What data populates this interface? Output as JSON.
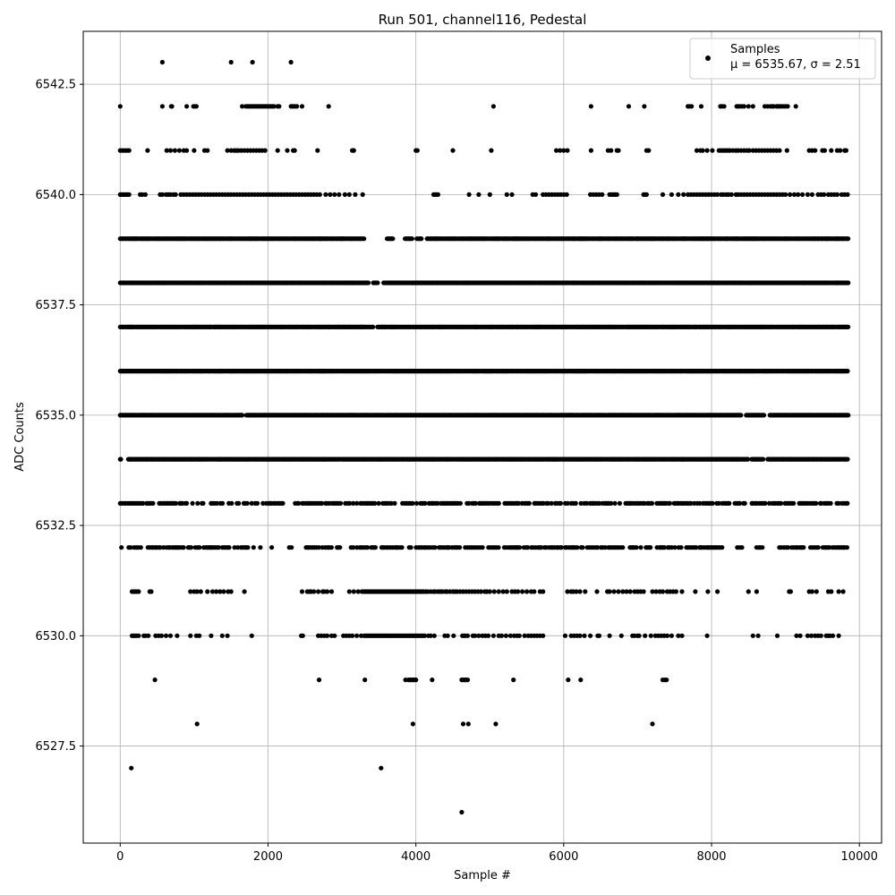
{
  "chart_data": {
    "type": "scatter",
    "title": "Run 501, channel116, Pedestal",
    "xlabel": "Sample #",
    "ylabel": "ADC Counts",
    "xlim": [
      -500,
      10300
    ],
    "ylim": [
      6525.3,
      6543.7
    ],
    "x_ticks": [
      0,
      2000,
      4000,
      6000,
      8000,
      10000
    ],
    "x_tick_labels": [
      "0",
      "2000",
      "4000",
      "6000",
      "8000",
      "10000"
    ],
    "y_ticks": [
      6527.5,
      6530.0,
      6532.5,
      6535.0,
      6537.5,
      6540.0,
      6542.5
    ],
    "y_tick_labels": [
      "6527.5",
      "6530.0",
      "6532.5",
      "6535.0",
      "6537.5",
      "6540.0",
      "6542.5"
    ],
    "grid": true,
    "legend_position": "top-right",
    "marker_color": "#000000",
    "series": [
      {
        "name": "Samples",
        "legend_stats": "μ = 6535.67, σ = 2.51",
        "n_samples": 9850,
        "levels": [
          {
            "adc": 6543,
            "x": [
              570,
              1500,
              1790,
              2310
            ]
          },
          {
            "adc": 6542,
            "x": [
              0,
              570,
              690,
              700,
              900,
              990,
              1010,
              1030,
              1650,
              1700,
              1720,
              1740,
              1760,
              1780,
              1800,
              1820,
              1840,
              1860,
              1880,
              1900,
              1920,
              1940,
              1960,
              1980,
              2000,
              2020,
              2040,
              2060,
              2080,
              2130,
              2150,
              2310,
              2330,
              2350,
              2370,
              2390,
              2460,
              2820,
              5050,
              6370,
              6880,
              7090,
              7680,
              7700,
              7730,
              7860,
              8120,
              8140,
              8170,
              8340,
              8360,
              8380,
              8410,
              8440,
              8500,
              8560,
              8720,
              8760,
              8800,
              8820,
              8840,
              8880,
              8900,
              8920,
              8940,
              8970,
              9000,
              9030,
              9140
            ]
          },
          {
            "adc": 6541,
            "x": [
              0,
              30,
              60,
              90,
              120,
              370,
              630,
              680,
              740,
              800,
              860,
              900,
              1000,
              1140,
              1180,
              1450,
              1500,
              1540,
              1570,
              1600,
              1640,
              1680,
              1720,
              1760,
              1800,
              1840,
              1880,
              1920,
              1960,
              2130,
              2260,
              2340,
              2360,
              2670,
              3140,
              3160,
              4000,
              4020,
              4500,
              5020,
              5900,
              5950,
              6000,
              6050,
              6370,
              6600,
              6640,
              6720,
              6740,
              7120,
              7150,
              7800,
              7850,
              7880,
              7940,
              8010,
              8100,
              8130,
              8160,
              8190,
              8220,
              8250,
              8290,
              8330,
              8360,
              8400,
              8440,
              8480,
              8510,
              8560,
              8600,
              8640,
              8680,
              8720,
              8760,
              8800,
              8840,
              8880,
              8920,
              9020,
              9320,
              9360,
              9400,
              9500,
              9530,
              9620,
              9700,
              9740,
              9800,
              9820
            ]
          },
          {
            "adc": 6540,
            "x": [
              0,
              20,
              40,
              60,
              80,
              100,
              120,
              270,
              300,
              340,
              540,
              570,
              620,
              650,
              680,
              720,
              750,
              820,
              860,
              900,
              940,
              980,
              1020,
              1060,
              1100,
              1140,
              1180,
              1220,
              1260,
              1300,
              1340,
              1380,
              1420,
              1460,
              1500,
              1540,
              1580,
              1620,
              1660,
              1700,
              1740,
              1780,
              1820,
              1860,
              1900,
              1940,
              1980,
              2020,
              2060,
              2100,
              2140,
              2180,
              2220,
              2260,
              2300,
              2340,
              2380,
              2420,
              2460,
              2500,
              2540,
              2580,
              2620,
              2660,
              2700,
              2780,
              2840,
              2900,
              2960,
              3040,
              3100,
              3180,
              3280,
              4240,
              4260,
              4280,
              4300,
              4720,
              4850,
              5000,
              5230,
              5300,
              5580,
              5620,
              5720,
              5760,
              5800,
              5840,
              5880,
              5920,
              5960,
              6000,
              6040,
              6360,
              6400,
              6440,
              6480,
              6520,
              6620,
              6650,
              6680,
              6700,
              6720,
              7080,
              7100,
              7120,
              7340,
              7460,
              7550,
              7620,
              7680,
              7720,
              7760,
              7800,
              7840,
              7880,
              7920,
              7960,
              8000,
              8040,
              8080,
              8130,
              8160,
              8200,
              8230,
              8270,
              8330,
              8360,
              8400,
              8440,
              8480,
              8520,
              8560,
              8600,
              8640,
              8680,
              8720,
              8760,
              8800,
              8840,
              8880,
              8920,
              8960,
              9000,
              9060,
              9120,
              9170,
              9230,
              9300,
              9360,
              9440,
              9480,
              9520,
              9580,
              9620,
              9660,
              9700,
              9760,
              9800,
              9840
            ]
          },
          {
            "adc": 6539,
            "x_range": [
              0,
              9850
            ],
            "gaps": [
              [
                3300,
                3600
              ],
              [
                3700,
                3850
              ],
              [
                3950,
                4000
              ],
              [
                4080,
                4150
              ]
            ],
            "density": "dense"
          },
          {
            "adc": 6538,
            "x_range": [
              0,
              9850
            ],
            "gaps": [
              [
                3360,
                3420
              ],
              [
                3490,
                3560
              ]
            ],
            "density": "dense"
          },
          {
            "adc": 6537,
            "x_range": [
              0,
              9850
            ],
            "gaps": [
              [
                3420,
                3480
              ]
            ],
            "density": "dense"
          },
          {
            "adc": 6536,
            "x_range": [
              0,
              9850
            ],
            "gaps": [],
            "density": "dense"
          },
          {
            "adc": 6535,
            "x_range": [
              0,
              9850
            ],
            "gaps": [
              [
                1650,
                1700
              ],
              [
                8400,
                8460
              ],
              [
                8720,
                8780
              ]
            ],
            "density": "dense"
          },
          {
            "adc": 6534,
            "x_range": [
              0,
              9850
            ],
            "gaps": [
              [
                20,
                100
              ],
              [
                8500,
                8540
              ],
              [
                8700,
                8760
              ]
            ],
            "density": "dense"
          },
          {
            "adc": 6533,
            "x_range": [
              0,
              9850
            ],
            "gaps": [
              [
                1000,
                1030
              ],
              [
                1400,
                1450
              ],
              [
                1630,
                1660
              ],
              [
                8100,
                8130
              ],
              [
                8390,
                8420
              ],
              [
                8450,
                8540
              ]
            ],
            "density": "medium"
          },
          {
            "adc": 6532,
            "x_range": [
              0,
              9850
            ],
            "gaps": [
              [
                30,
                100
              ],
              [
                1350,
                1380
              ],
              [
                1600,
                1620
              ],
              [
                1900,
                2010
              ],
              [
                2060,
                2250
              ],
              [
                2340,
                2500
              ],
              [
                7050,
                7100
              ],
              [
                8180,
                8340
              ],
              [
                8420,
                8580
              ],
              [
                8700,
                8900
              ]
            ],
            "density": "medium"
          },
          {
            "adc": 6531,
            "x": [
              160,
              180,
              200,
              220,
              250,
              400,
              420,
              950,
              1000,
              1040,
              1090,
              1180,
              1250,
              1300,
              1350,
              1400,
              1460,
              1500,
              1680,
              2460,
              2530,
              2560,
              2580,
              2620,
              2680,
              2740,
              2760,
              2800,
              2860,
              3100,
              3160,
              3220,
              3270,
              3300,
              3320,
              3340,
              3360,
              3380,
              3400,
              3420,
              3440,
              3460,
              3480,
              3500,
              3520,
              3540,
              3560,
              3580,
              3600,
              3620,
              3640,
              3660,
              3680,
              3700,
              3720,
              3740,
              3760,
              3780,
              3800,
              3820,
              3840,
              3860,
              3880,
              3900,
              3920,
              3940,
              3960,
              3980,
              4000,
              4020,
              4040,
              4060,
              4080,
              4100,
              4130,
              4160,
              4200,
              4240,
              4260,
              4300,
              4330,
              4360,
              4400,
              4420,
              4460,
              4500,
              4530,
              4560,
              4600,
              4640,
              4680,
              4720,
              4760,
              4800,
              4840,
              4880,
              4930,
              4960,
              5000,
              5060,
              5120,
              5180,
              5230,
              5300,
              5340,
              5380,
              5440,
              5500,
              5560,
              5600,
              5680,
              5720,
              6050,
              6100,
              6130,
              6170,
              6220,
              6290,
              6450,
              6590,
              6620,
              6680,
              6740,
              6800,
              6850,
              6900,
              6960,
              7000,
              7040,
              7080,
              7200,
              7250,
              7300,
              7340,
              7400,
              7440,
              7480,
              7520,
              7600,
              7780,
              7950,
              8080,
              8500,
              8610,
              9050,
              9070,
              9320,
              9360,
              9420,
              9580,
              9620,
              9720,
              9780
            ]
          },
          {
            "adc": 6530,
            "x": [
              160,
              180,
              200,
              220,
              250,
              320,
              340,
              380,
              480,
              520,
              560,
              620,
              680,
              770,
              950,
              1030,
              1070,
              1230,
              1380,
              1450,
              1780,
              2450,
              2470,
              2680,
              2720,
              2760,
              2800,
              2860,
              2900,
              3020,
              3060,
              3100,
              3140,
              3200,
              3260,
              3300,
              3320,
              3340,
              3360,
              3380,
              3400,
              3420,
              3440,
              3460,
              3480,
              3500,
              3520,
              3540,
              3560,
              3580,
              3600,
              3620,
              3640,
              3660,
              3680,
              3700,
              3720,
              3740,
              3760,
              3780,
              3800,
              3820,
              3840,
              3860,
              3880,
              3900,
              3920,
              3940,
              3960,
              3980,
              4000,
              4020,
              4040,
              4060,
              4080,
              4100,
              4120,
              4170,
              4200,
              4250,
              4390,
              4430,
              4510,
              4630,
              4650,
              4670,
              4700,
              4770,
              4800,
              4850,
              4900,
              4940,
              4980,
              5050,
              5120,
              5160,
              5220,
              5280,
              5330,
              5370,
              5400,
              5470,
              5520,
              5560,
              5600,
              5640,
              5680,
              5720,
              6020,
              6100,
              6140,
              6180,
              6220,
              6280,
              6360,
              6460,
              6480,
              6620,
              6780,
              6930,
              6960,
              7000,
              7020,
              7100,
              7180,
              7240,
              7280,
              7320,
              7360,
              7400,
              7460,
              7550,
              7600,
              7940,
              8560,
              8630,
              8890,
              9150,
              9200,
              9300,
              9350,
              9400,
              9440,
              9480,
              9550,
              9580,
              9600,
              9640,
              9720
            ]
          },
          {
            "adc": 6529,
            "x": [
              470,
              2690,
              3310,
              3860,
              3900,
              3920,
              3940,
              3960,
              3980,
              4000,
              4220,
              4620,
              4640,
              4660,
              4680,
              4700,
              5320,
              6060,
              6230,
              7340,
              7370,
              7390
            ]
          },
          {
            "adc": 6528,
            "x": [
              1040,
              3960,
              4640,
              4710,
              5080,
              7200
            ]
          },
          {
            "adc": 6527,
            "x": [
              150,
              3530
            ]
          },
          {
            "adc": 6526,
            "x": [
              4620
            ]
          }
        ]
      }
    ]
  }
}
